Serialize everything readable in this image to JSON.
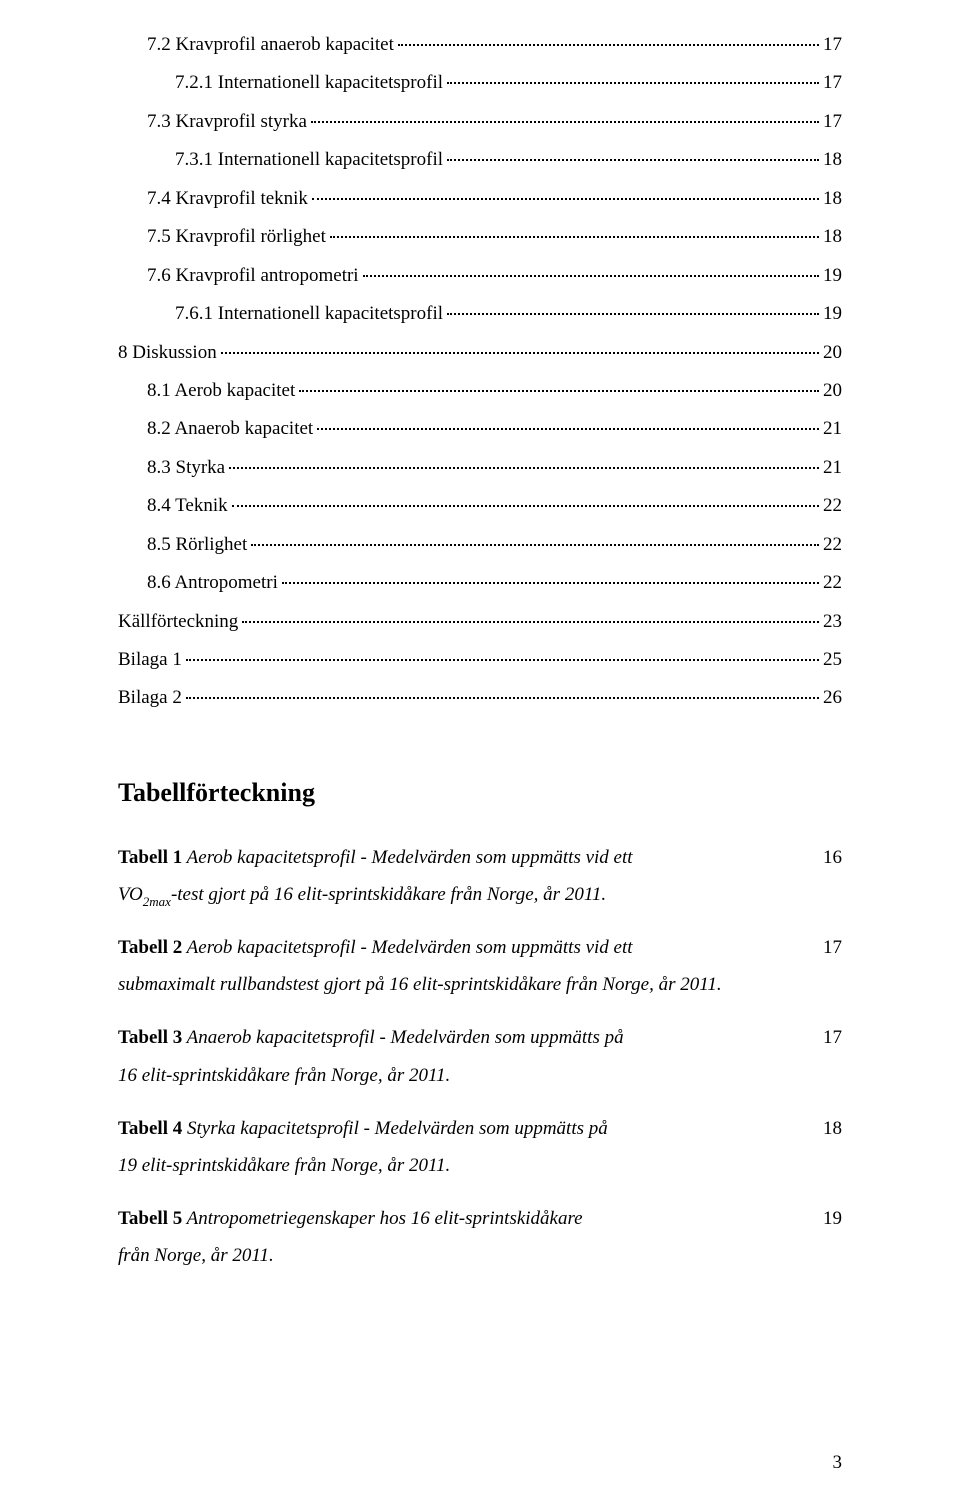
{
  "toc": [
    {
      "indent": 1,
      "label": "7.2 Kravprofil anaerob kapacitet",
      "page": "17"
    },
    {
      "indent": 2,
      "label": "7.2.1 Internationell kapacitetsprofil",
      "page": "17"
    },
    {
      "indent": 1,
      "label": "7.3 Kravprofil styrka",
      "page": "17"
    },
    {
      "indent": 2,
      "label": "7.3.1 Internationell kapacitetsprofil",
      "page": "18"
    },
    {
      "indent": 1,
      "label": "7.4 Kravprofil teknik",
      "page": "18"
    },
    {
      "indent": 1,
      "label": "7.5 Kravprofil rörlighet",
      "page": "18"
    },
    {
      "indent": 1,
      "label": "7.6 Kravprofil antropometri",
      "page": "19"
    },
    {
      "indent": 2,
      "label": "7.6.1 Internationell kapacitetsprofil",
      "page": "19"
    },
    {
      "indent": 0,
      "label": "8 Diskussion",
      "page": "20"
    },
    {
      "indent": 1,
      "label": "8.1 Aerob kapacitet",
      "page": "20"
    },
    {
      "indent": 1,
      "label": "8.2 Anaerob kapacitet",
      "page": "21"
    },
    {
      "indent": 1,
      "label": "8.3 Styrka",
      "page": "21"
    },
    {
      "indent": 1,
      "label": "8.4 Teknik",
      "page": "22"
    },
    {
      "indent": 1,
      "label": "8.5 Rörlighet",
      "page": "22"
    },
    {
      "indent": 1,
      "label": "8.6 Antropometri",
      "page": "22"
    },
    {
      "indent": 0,
      "label": "Källförteckning",
      "page": "23"
    },
    {
      "indent": 0,
      "label": "Bilaga 1",
      "page": "25"
    },
    {
      "indent": 0,
      "label": "Bilaga 2",
      "page": "26"
    }
  ],
  "heading": "Tabellförteckning",
  "tables": [
    {
      "title": "Tabell 1",
      "desc_line1": " Aerob kapacitetsprofil - Medelvärden som uppmätts vid ett",
      "desc_line2_pre": "VO",
      "desc_line2_sub": "2max",
      "desc_line2_post": "-test gjort på 16 elit-sprintskidåkare från Norge, år 2011.",
      "page": "16"
    },
    {
      "title": "Tabell 2",
      "desc_line1": " Aerob kapacitetsprofil - Medelvärden som uppmätts vid ett",
      "desc_line2": "submaximalt rullbandstest gjort på 16 elit-sprintskidåkare från Norge, år 2011.",
      "page": "17"
    },
    {
      "title": "Tabell 3",
      "desc_line1": " Anaerob kapacitetsprofil - Medelvärden som uppmätts på",
      "desc_line2": "16 elit-sprintskidåkare från Norge, år 2011.",
      "page": "17"
    },
    {
      "title": "Tabell 4",
      "desc_line1": " Styrka kapacitetsprofil - Medelvärden som uppmätts på",
      "desc_line2": "19 elit-sprintskidåkare från Norge, år 2011.",
      "page": "18"
    },
    {
      "title": "Tabell 5",
      "desc_line1": " Antropometriegenskaper hos 16 elit-sprintskidåkare",
      "desc_line2": "från Norge, år 2011.",
      "page": "19"
    }
  ],
  "footer_page": "3"
}
